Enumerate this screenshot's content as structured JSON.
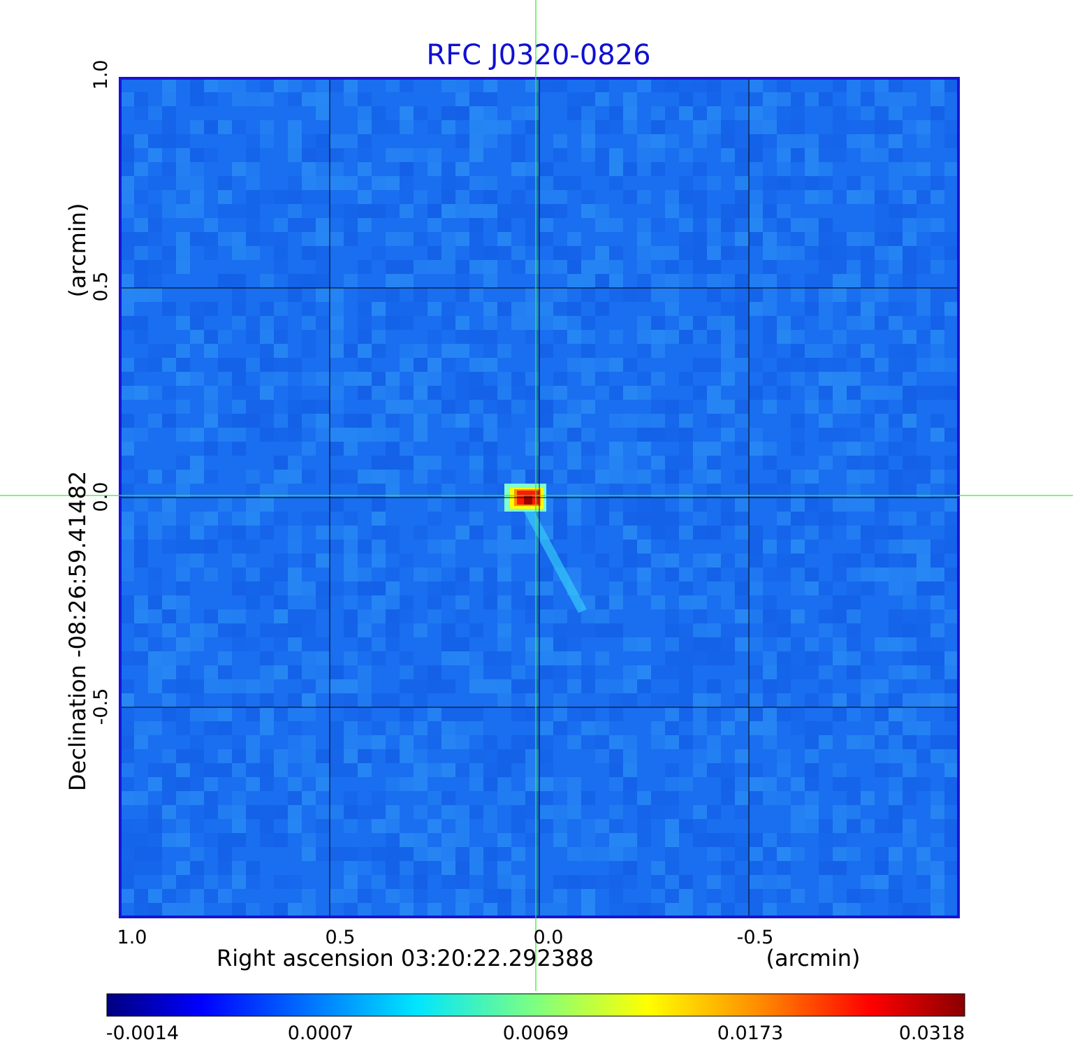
{
  "chart_data": {
    "type": "heatmap",
    "title": "RFC J0320-0826",
    "xlabel": "Right ascension  03:20:22.292388",
    "xunit": "(arcmin)",
    "ylabel": "Declination  -08:26:59.41482",
    "yunit": "(arcmin)",
    "xlim": [
      1.0,
      -1.0
    ],
    "ylim": [
      -1.0,
      1.0
    ],
    "x_ticks": [
      "1.0",
      "0.5",
      "0.0",
      "-0.5"
    ],
    "y_ticks": [
      "1.0",
      "0.5",
      "0.0",
      "-0.5"
    ],
    "grid": true,
    "crosshair": {
      "x": 0.0,
      "y": 0.0
    },
    "source": {
      "x": 0.02,
      "y": 0.0
    },
    "colorbar": {
      "tick_labels": [
        "-0.0014",
        "0.0007",
        "0.0069",
        "0.0173",
        "0.0318"
      ],
      "range": [
        -0.0014,
        0.0318
      ],
      "colormap": "jet"
    },
    "colors": {
      "frame": "#1515d5",
      "title": "#1010d0",
      "crosshair": "#33ee33",
      "grid": "#000000"
    }
  }
}
